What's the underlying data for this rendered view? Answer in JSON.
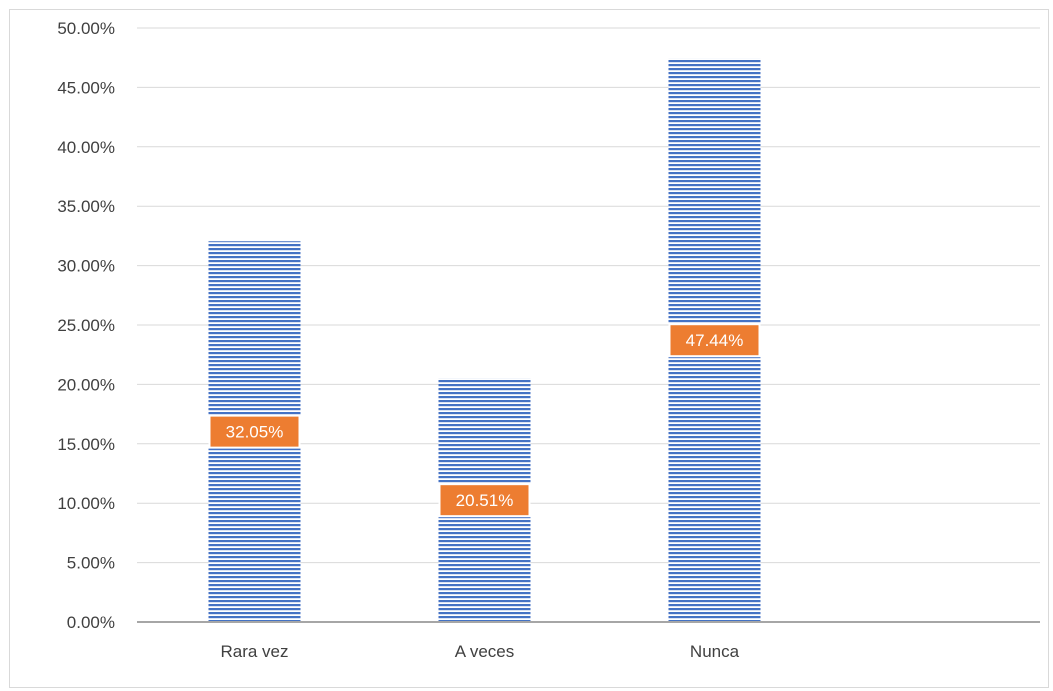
{
  "chart_data": {
    "type": "bar",
    "categories": [
      "Rara vez",
      "A veces",
      "Nunca"
    ],
    "values": [
      32.05,
      20.51,
      47.44
    ],
    "data_labels": [
      "32.05%",
      "20.51%",
      "47.44%"
    ],
    "ylim": [
      0,
      50
    ],
    "yticks": [
      "0.00%",
      "5.00%",
      "10.00%",
      "15.00%",
      "20.00%",
      "25.00%",
      "30.00%",
      "35.00%",
      "40.00%",
      "45.00%",
      "50.00%"
    ],
    "title": "",
    "xlabel": "",
    "ylabel": "",
    "grid": true,
    "legend": "none",
    "colors": {
      "bar": "#4472c4",
      "bar_stripe": "#ffffff",
      "label_bg": "#ed7d31",
      "grid": "#d9d9d9",
      "axis": "#a6a6a6"
    }
  }
}
